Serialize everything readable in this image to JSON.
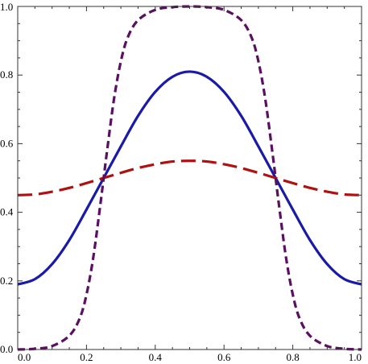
{
  "chart_data": {
    "type": "line",
    "title": "",
    "xlabel": "",
    "ylabel": "",
    "xlim": [
      0,
      1
    ],
    "ylim": [
      0,
      1
    ],
    "grid": false,
    "legend": "none",
    "x_ticks": [
      "0.0",
      "0.2",
      "0.4",
      "0.6",
      "0.8",
      "1.0"
    ],
    "y_ticks": [
      "0.0",
      "0.2",
      "0.4",
      "0.6",
      "0.8",
      "1.0"
    ],
    "series": [
      {
        "color": "#1a1aa8",
        "style": "solid",
        "x": [
          0.0,
          0.05,
          0.1,
          0.15,
          0.2,
          0.25,
          0.3,
          0.35,
          0.4,
          0.45,
          0.5,
          0.55,
          0.6,
          0.65,
          0.7,
          0.75,
          0.8,
          0.85,
          0.9,
          0.95,
          1.0
        ],
        "values": [
          0.19,
          0.205,
          0.249,
          0.319,
          0.408,
          0.5,
          0.592,
          0.681,
          0.751,
          0.795,
          0.81,
          0.795,
          0.751,
          0.681,
          0.592,
          0.5,
          0.408,
          0.319,
          0.249,
          0.205,
          0.19
        ]
      },
      {
        "color": "#b01010",
        "style": "long-dash",
        "x": [
          0.0,
          0.05,
          0.1,
          0.15,
          0.2,
          0.25,
          0.3,
          0.35,
          0.4,
          0.45,
          0.5,
          0.55,
          0.6,
          0.65,
          0.7,
          0.75,
          0.8,
          0.85,
          0.9,
          0.95,
          1.0
        ],
        "values": [
          0.45,
          0.452,
          0.46,
          0.471,
          0.485,
          0.5,
          0.515,
          0.529,
          0.54,
          0.548,
          0.55,
          0.548,
          0.54,
          0.529,
          0.515,
          0.5,
          0.485,
          0.471,
          0.46,
          0.452,
          0.45
        ]
      },
      {
        "color": "#5a1060",
        "style": "short-dash",
        "x": [
          0.0,
          0.05,
          0.1,
          0.15,
          0.18,
          0.2,
          0.22,
          0.24,
          0.25,
          0.26,
          0.28,
          0.3,
          0.32,
          0.35,
          0.4,
          0.45,
          0.5,
          0.55,
          0.6,
          0.65,
          0.68,
          0.7,
          0.72,
          0.74,
          0.75,
          0.76,
          0.78,
          0.8,
          0.82,
          0.85,
          0.9,
          0.95,
          1.0
        ],
        "values": [
          0.0,
          0.002,
          0.01,
          0.04,
          0.09,
          0.16,
          0.27,
          0.42,
          0.5,
          0.58,
          0.73,
          0.84,
          0.91,
          0.96,
          0.99,
          0.998,
          1.0,
          0.998,
          0.99,
          0.96,
          0.91,
          0.84,
          0.73,
          0.58,
          0.5,
          0.42,
          0.27,
          0.16,
          0.09,
          0.04,
          0.01,
          0.002,
          0.0
        ]
      }
    ]
  }
}
